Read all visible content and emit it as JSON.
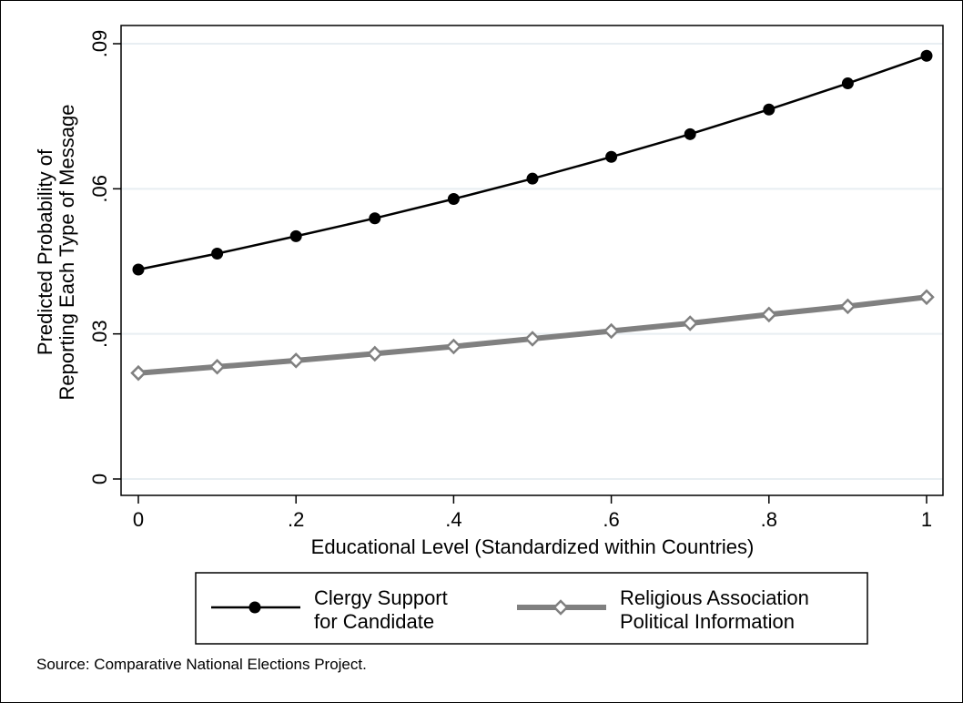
{
  "chart_data": {
    "type": "line",
    "xlabel": "Educational Level (Standardized within Countries)",
    "ylabel_lines": [
      "Predicted Probability of",
      "Reporting Each Type of Message"
    ],
    "xlim": [
      0,
      1
    ],
    "ylim": [
      0,
      0.09
    ],
    "x_ticks": [
      0,
      0.2,
      0.4,
      0.6,
      0.8,
      1
    ],
    "x_tick_labels": [
      "0",
      ".2",
      ".4",
      ".6",
      ".8",
      "1"
    ],
    "y_ticks": [
      0,
      0.03,
      0.06,
      0.09
    ],
    "y_tick_labels": [
      "0",
      ".03",
      ".06",
      ".09"
    ],
    "grid": "horizontal",
    "x": [
      0,
      0.1,
      0.2,
      0.3,
      0.4,
      0.5,
      0.6,
      0.7,
      0.8,
      0.9,
      1.0
    ],
    "series": [
      {
        "name_lines": [
          "Clergy Support",
          "for Candidate"
        ],
        "color": "#000000",
        "marker": "circle",
        "values": [
          0.0433,
          0.0466,
          0.0502,
          0.0539,
          0.0579,
          0.0621,
          0.0666,
          0.0713,
          0.0764,
          0.0818,
          0.0875
        ]
      },
      {
        "name_lines": [
          "Religious Association",
          "Political Information"
        ],
        "color": "#808080",
        "marker": "diamond",
        "values": [
          0.0219,
          0.0232,
          0.0245,
          0.0259,
          0.0274,
          0.029,
          0.0306,
          0.0322,
          0.034,
          0.0357,
          0.0376
        ]
      }
    ],
    "legend_position": "bottom"
  },
  "note": "Source: Comparative National Elections Project."
}
